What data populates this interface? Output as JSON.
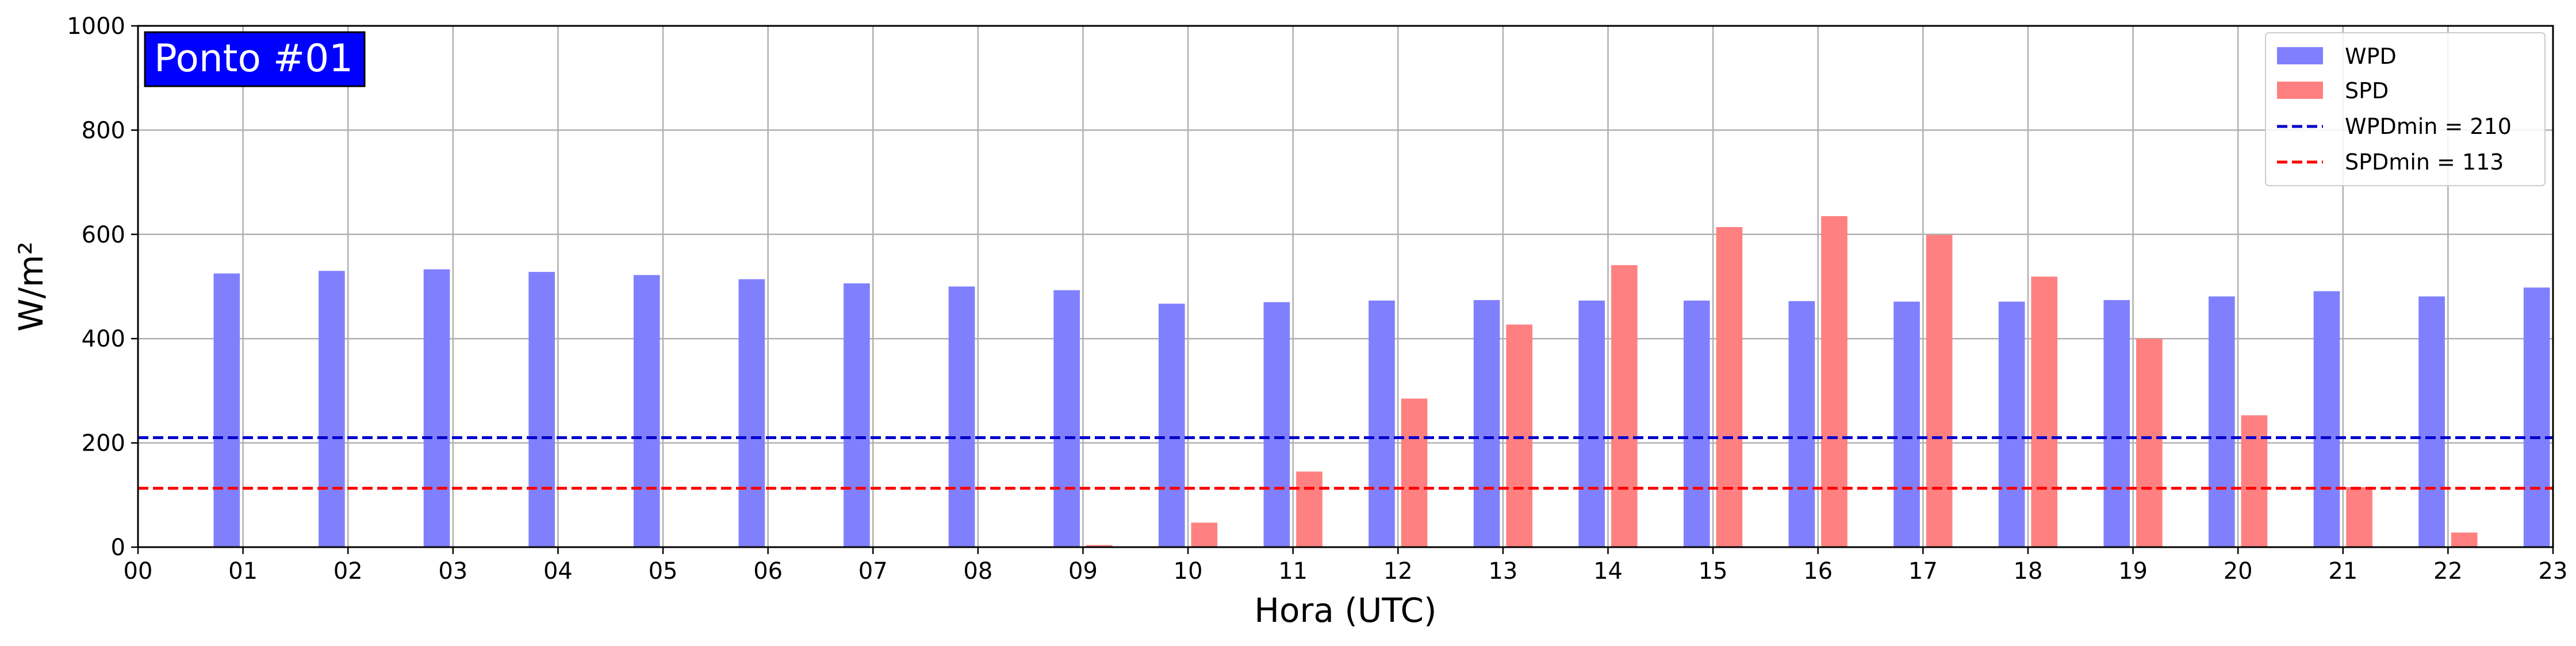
{
  "chart_data": {
    "type": "bar",
    "badge": "Ponto #01",
    "xlabel": "Hora (UTC)",
    "ylabel": "W/m²",
    "ylim": [
      0,
      1000
    ],
    "yticks": [
      0,
      200,
      400,
      600,
      800,
      1000
    ],
    "xlim": [
      0,
      23
    ],
    "categories": [
      "00",
      "01",
      "02",
      "03",
      "04",
      "05",
      "06",
      "07",
      "08",
      "09",
      "10",
      "11",
      "12",
      "13",
      "14",
      "15",
      "16",
      "17",
      "18",
      "19",
      "20",
      "21",
      "22",
      "23"
    ],
    "grid": true,
    "legend_placement": "top-right",
    "series": [
      {
        "name": "WPD",
        "color": "#8080ff",
        "values": [
          null,
          525,
          530,
          533,
          528,
          522,
          514,
          506,
          500,
          493,
          467,
          470,
          473,
          474,
          473,
          473,
          472,
          471,
          471,
          474,
          481,
          491,
          481,
          498
        ]
      },
      {
        "name": "SPD",
        "color": "#ff8080",
        "values": [
          null,
          0,
          0,
          0,
          0,
          0,
          0,
          0,
          0,
          4,
          47,
          145,
          285,
          427,
          541,
          614,
          635,
          599,
          519,
          400,
          253,
          115,
          28,
          0
        ]
      }
    ],
    "reference_lines": [
      {
        "name": "WPDmin = 210",
        "value": 210,
        "color": "#0000cc",
        "style": "dashed"
      },
      {
        "name": "SPDmin = 113",
        "value": 113,
        "color": "#ff0000",
        "style": "dashed"
      }
    ]
  }
}
